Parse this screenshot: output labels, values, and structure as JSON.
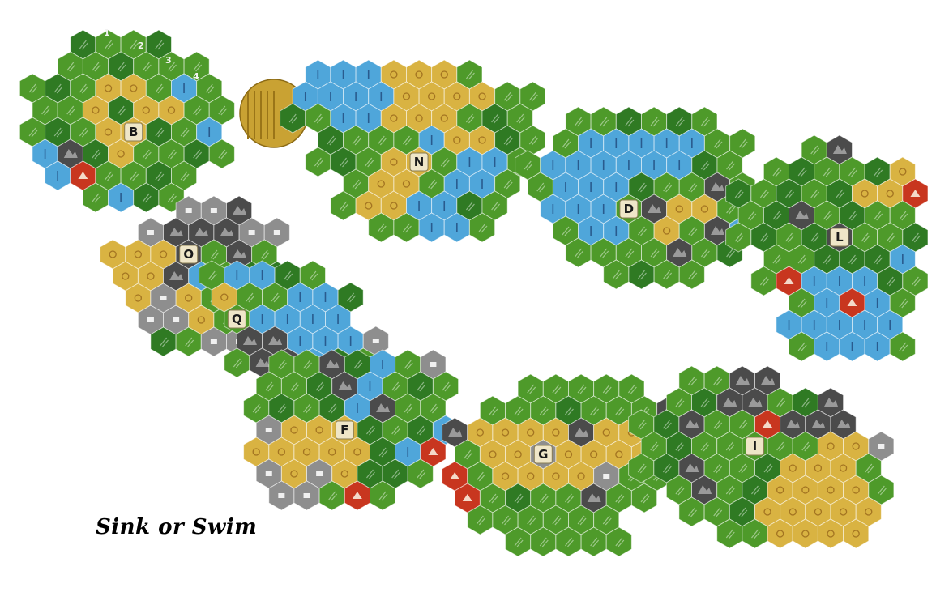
{
  "title": "Sink or Swim",
  "start_numbers": [
    "1",
    "2",
    "3",
    "4"
  ],
  "terrain_colors": {
    "forest": "#4e9a2a",
    "jungle": "#2f7a23",
    "water": "#4fa6da",
    "sand": "#d9b342",
    "rock": "#8e8e8e",
    "mountain": "#4b4b4b",
    "camp": "#c8361f",
    "gold": "#c9a233"
  },
  "tiles": [
    {
      "label": "B",
      "name": "tile-b"
    },
    {
      "label": "N",
      "name": "tile-n"
    },
    {
      "label": "D",
      "name": "tile-d"
    },
    {
      "label": "L",
      "name": "tile-l"
    },
    {
      "label": "O",
      "name": "tile-o"
    },
    {
      "label": "Q",
      "name": "tile-q"
    },
    {
      "label": "F",
      "name": "tile-f"
    },
    {
      "label": "G",
      "name": "tile-g"
    },
    {
      "label": "I",
      "name": "tile-i"
    }
  ]
}
